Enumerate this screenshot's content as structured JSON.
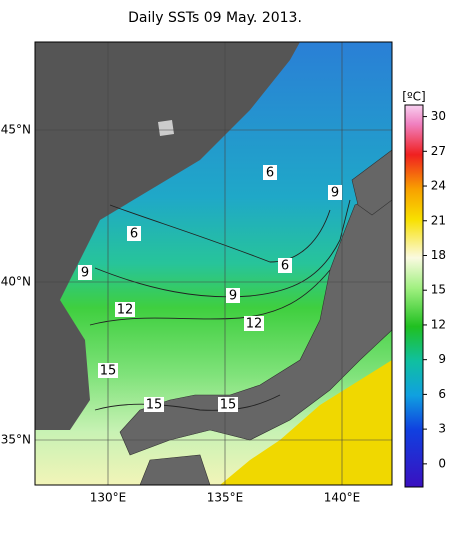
{
  "title": "Daily SSTs 09 May. 2013.",
  "lat_labels": [
    "45°N",
    "40°N",
    "35°N"
  ],
  "lon_labels": [
    "130°E",
    "135°E",
    "140°E"
  ],
  "contour_labels": [
    6,
    9,
    6,
    6,
    9,
    9,
    12,
    12,
    15,
    15,
    15
  ],
  "colorbar": {
    "label": "[ºC]",
    "ylim": [
      -2,
      31
    ],
    "ticks": [
      0,
      3,
      6,
      9,
      12,
      15,
      18,
      21,
      24,
      27,
      30
    ]
  }
}
